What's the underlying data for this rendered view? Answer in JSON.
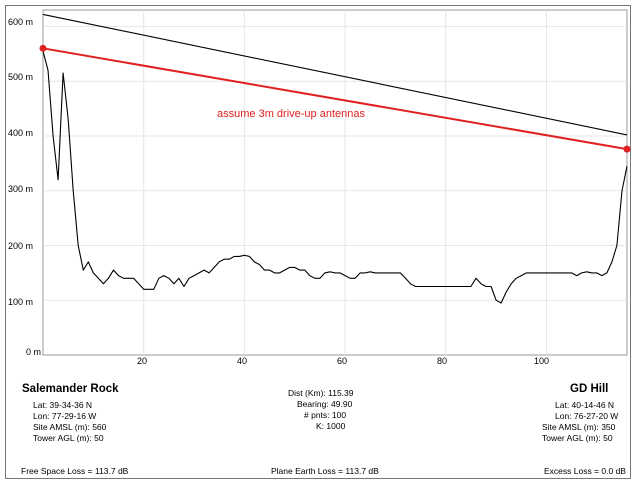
{
  "chart_data": {
    "type": "line",
    "xlim": [
      0,
      116
    ],
    "ylim": [
      0,
      630
    ],
    "y_ticks": [
      {
        "value": 0,
        "label": "0 m"
      },
      {
        "value": 100,
        "label": "100 m"
      },
      {
        "value": 200,
        "label": "200 m"
      },
      {
        "value": 300,
        "label": "300 m"
      },
      {
        "value": 400,
        "label": "400 m"
      },
      {
        "value": 500,
        "label": "500 m"
      },
      {
        "value": 600,
        "label": "600 m"
      }
    ],
    "x_ticks": [
      {
        "value": 20,
        "label": "20"
      },
      {
        "value": 40,
        "label": "40"
      },
      {
        "value": 60,
        "label": "60"
      },
      {
        "value": 80,
        "label": "80"
      },
      {
        "value": 100,
        "label": "100"
      }
    ],
    "grid": true,
    "series": [
      {
        "role": "terrain",
        "color": "#000000",
        "x": [
          0,
          1,
          2,
          3,
          4,
          5,
          6,
          7,
          8,
          9,
          10,
          11,
          12,
          13,
          14,
          15,
          16,
          17,
          18,
          19,
          20,
          21,
          22,
          23,
          24,
          25,
          26,
          27,
          28,
          29,
          30,
          31,
          32,
          33,
          34,
          35,
          36,
          37,
          38,
          39,
          40,
          41,
          42,
          43,
          44,
          45,
          46,
          47,
          48,
          49,
          50,
          51,
          52,
          53,
          54,
          55,
          56,
          57,
          58,
          59,
          60,
          61,
          62,
          63,
          64,
          65,
          66,
          67,
          68,
          69,
          70,
          71,
          72,
          73,
          74,
          75,
          76,
          77,
          78,
          79,
          80,
          81,
          82,
          83,
          84,
          85,
          86,
          87,
          88,
          89,
          90,
          91,
          92,
          93,
          94,
          95,
          96,
          97,
          98,
          99,
          100,
          101,
          102,
          103,
          104,
          105,
          106,
          107,
          108,
          109,
          110,
          111,
          112,
          113,
          114,
          115,
          116
        ],
        "y": [
          555,
          520,
          400,
          320,
          515,
          430,
          300,
          200,
          155,
          170,
          150,
          140,
          130,
          140,
          155,
          145,
          140,
          140,
          140,
          130,
          120,
          120,
          120,
          140,
          145,
          140,
          130,
          140,
          125,
          140,
          145,
          150,
          155,
          150,
          160,
          170,
          175,
          175,
          180,
          180,
          182,
          180,
          170,
          165,
          155,
          155,
          150,
          150,
          155,
          160,
          160,
          155,
          155,
          145,
          140,
          140,
          150,
          152,
          150,
          150,
          145,
          140,
          140,
          150,
          150,
          152,
          150,
          150,
          150,
          150,
          150,
          150,
          140,
          130,
          125,
          125,
          125,
          125,
          125,
          125,
          125,
          125,
          125,
          125,
          125,
          125,
          140,
          130,
          125,
          125,
          100,
          95,
          115,
          130,
          140,
          145,
          150,
          150,
          150,
          150,
          150,
          150,
          150,
          150,
          150,
          150,
          145,
          150,
          152,
          150,
          150,
          145,
          150,
          170,
          200,
          300,
          345
        ]
      },
      {
        "role": "reference-line",
        "color": "#000000",
        "x": [
          0,
          116
        ],
        "y": [
          622,
          402
        ]
      },
      {
        "role": "path-line",
        "color": "#e02020",
        "x": [
          0,
          116
        ],
        "y": [
          560,
          376
        ]
      }
    ],
    "annotation": "assume 3m drive-up antennas"
  },
  "site_left": {
    "name": "Salemander Rock",
    "lat": "Lat: 39-34-36 N",
    "lon": "Lon: 77-29-16 W",
    "amsl": "Site AMSL (m): 560",
    "tower": "Tower AGL (m): 50"
  },
  "site_right": {
    "name": "GD Hill",
    "lat": "Lat: 40-14-46 N",
    "lon": "Lon: 76-27-20 W",
    "amsl": "Site AMSL (m): 350",
    "tower": "Tower AGL (m): 50"
  },
  "path": {
    "dist": "Dist (Km): 115.39",
    "bearing": "Bearing: 49.90",
    "points": "# pnts: 100",
    "k": "K: 1000"
  },
  "losses": {
    "free_space": "Free Space Loss = 113.7 dB",
    "plane_earth": "Plane Earth Loss = 113.7 dB",
    "excess": "Excess Loss = 0.0 dB"
  }
}
